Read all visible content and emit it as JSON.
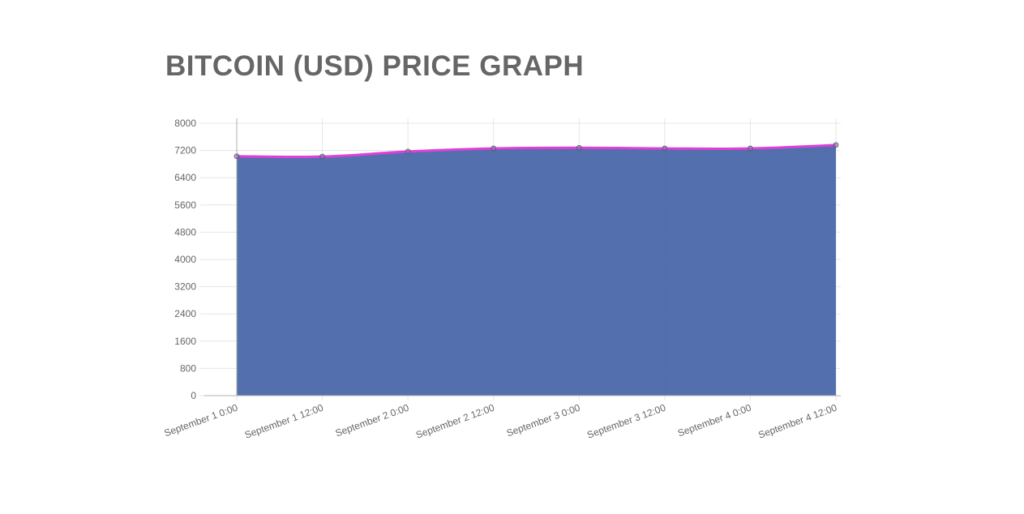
{
  "page": {
    "title": "BITCOIN (USD) PRICE GRAPH"
  },
  "colors": {
    "area_fill": "#4a67aa",
    "line": "#e040d8",
    "grid": "#e6e6e6",
    "axis": "#b0b0b0",
    "text": "#666666",
    "point": "#8a6ea8"
  },
  "chart_data": {
    "type": "area",
    "title": "BITCOIN (USD) PRICE GRAPH",
    "xlabel": "",
    "ylabel": "",
    "categories": [
      "September 1 0:00",
      "September 1 12:00",
      "September 2 0:00",
      "September 2 12:00",
      "September 3 0:00",
      "September 3 12:00",
      "September 4 0:00",
      "September 4 12:00"
    ],
    "series": [
      {
        "values": [
          7030,
          7020,
          7170,
          7260,
          7280,
          7260,
          7260,
          7360
        ]
      }
    ],
    "ylim": [
      0,
      8000
    ],
    "yticks": [
      "0",
      "800",
      "1600",
      "2400",
      "3200",
      "4000",
      "4800",
      "5600",
      "6400",
      "7200",
      "8000"
    ],
    "grid": true,
    "legend": "none"
  }
}
